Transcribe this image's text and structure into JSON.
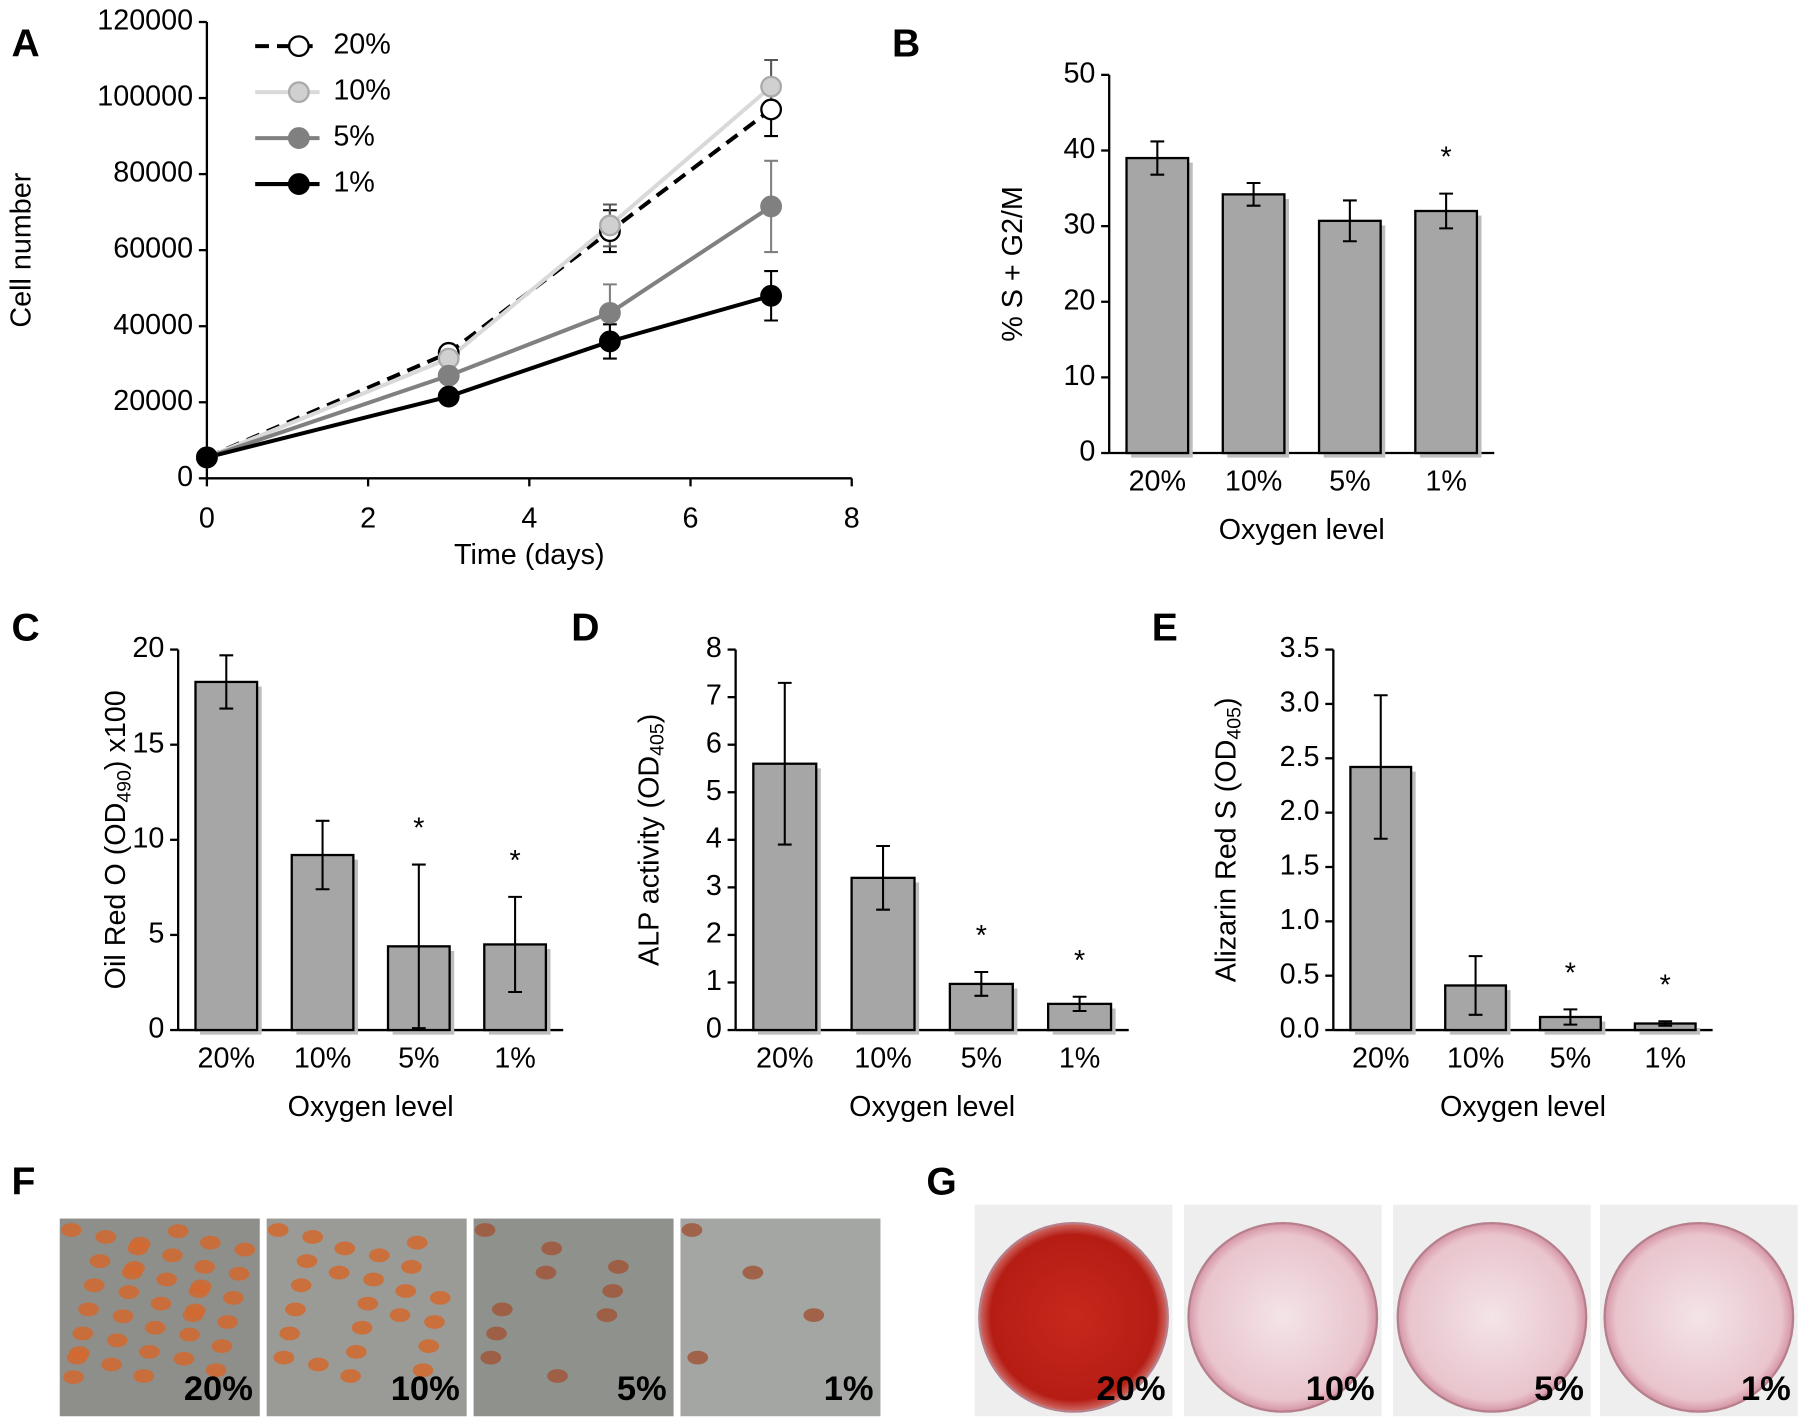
{
  "chart_data": [
    {
      "type": "line",
      "panel": "A",
      "xlabel": "Time (days)",
      "ylabel": "Cell number",
      "x": [
        0,
        3,
        5,
        7
      ],
      "xlim": [
        0,
        8
      ],
      "xticks": [
        0,
        2,
        4,
        6,
        8
      ],
      "ylim": [
        0,
        120000
      ],
      "yticks": [
        0,
        20000,
        40000,
        60000,
        80000,
        100000,
        120000
      ],
      "series": [
        {
          "name": "20%",
          "color": "#000000",
          "marker_fill": "#ffffff",
          "dashed": true,
          "values": [
            5500,
            33000,
            65000,
            97000
          ],
          "errors": [
            500,
            1500,
            5500,
            7000
          ]
        },
        {
          "name": "10%",
          "color": "#d9d9d9",
          "marker_fill": "#d0d0d0",
          "dashed": false,
          "values": [
            5500,
            31500,
            66500,
            103000
          ],
          "errors": [
            500,
            1500,
            5500,
            7000
          ]
        },
        {
          "name": "5%",
          "color": "#808080",
          "marker_fill": "#808080",
          "dashed": false,
          "values": [
            5500,
            27000,
            43500,
            71500
          ],
          "errors": [
            500,
            1500,
            7500,
            12000
          ]
        },
        {
          "name": "1%",
          "color": "#000000",
          "marker_fill": "#000000",
          "dashed": false,
          "values": [
            5500,
            21500,
            36000,
            48000
          ],
          "errors": [
            500,
            1000,
            4500,
            6500
          ]
        }
      ]
    },
    {
      "type": "bar",
      "panel": "B",
      "xlabel": "Oxygen level",
      "ylabel": {
        "text": "% S + G2/M"
      },
      "categories": [
        "20%",
        "10%",
        "5%",
        "1%"
      ],
      "values": [
        39,
        34.2,
        30.7,
        32
      ],
      "errors": [
        2.2,
        1.5,
        2.7,
        2.3
      ],
      "significance": [
        null,
        null,
        null,
        "*"
      ],
      "color": "#a6a6a6",
      "ylim": [
        0,
        50
      ],
      "yticks": [
        0,
        10,
        20,
        30,
        40,
        50
      ]
    },
    {
      "type": "bar",
      "panel": "C",
      "xlabel": "Oxygen level",
      "ylabel": {
        "text": "Oil Red O (OD",
        "sub": "490",
        "after": ") x100"
      },
      "categories": [
        "20%",
        "10%",
        "5%",
        "1%"
      ],
      "values": [
        18.3,
        9.2,
        4.4,
        4.5
      ],
      "errors": [
        1.4,
        1.8,
        4.3,
        2.5
      ],
      "significance": [
        null,
        null,
        "*",
        "*"
      ],
      "color": "#a6a6a6",
      "ylim": [
        0,
        20
      ],
      "yticks": [
        0,
        5,
        10,
        15,
        20
      ]
    },
    {
      "type": "bar",
      "panel": "D",
      "xlabel": "Oxygen level",
      "ylabel": {
        "text": "ALP activity (OD",
        "sub": "405",
        "after": ")"
      },
      "categories": [
        "20%",
        "10%",
        "5%",
        "1%"
      ],
      "values": [
        5.6,
        3.2,
        0.97,
        0.55
      ],
      "errors": [
        1.7,
        0.67,
        0.25,
        0.15
      ],
      "significance": [
        null,
        null,
        "*",
        "*"
      ],
      "color": "#a6a6a6",
      "ylim": [
        0,
        8
      ],
      "yticks": [
        0,
        1,
        2,
        3,
        4,
        5,
        6,
        7,
        8
      ]
    },
    {
      "type": "bar",
      "panel": "E",
      "xlabel": "Oxygen level",
      "ylabel": {
        "text": "Alizarin Red S (OD",
        "sub": "405",
        "after": ")"
      },
      "categories": [
        "20%",
        "10%",
        "5%",
        "1%"
      ],
      "values": [
        2.42,
        0.41,
        0.12,
        0.06
      ],
      "errors": [
        0.66,
        0.27,
        0.07,
        0.02
      ],
      "significance": [
        null,
        null,
        "*",
        "*"
      ],
      "color": "#a6a6a6",
      "ylim": [
        0,
        3.5
      ],
      "yticks": [
        {
          "value": 0,
          "label": "0.0"
        },
        0.5,
        {
          "value": 1,
          "label": "1.0"
        },
        1.5,
        {
          "value": 2,
          "label": "2.0"
        },
        2.5,
        {
          "value": 3,
          "label": "3.0"
        },
        3.5
      ]
    }
  ],
  "image_panels": [
    {
      "panel": "F",
      "labels": [
        "20%",
        "10%",
        "5%",
        "1%"
      ]
    },
    {
      "panel": "G",
      "labels": [
        "20%",
        "10%",
        "5%",
        "1%"
      ]
    }
  ]
}
